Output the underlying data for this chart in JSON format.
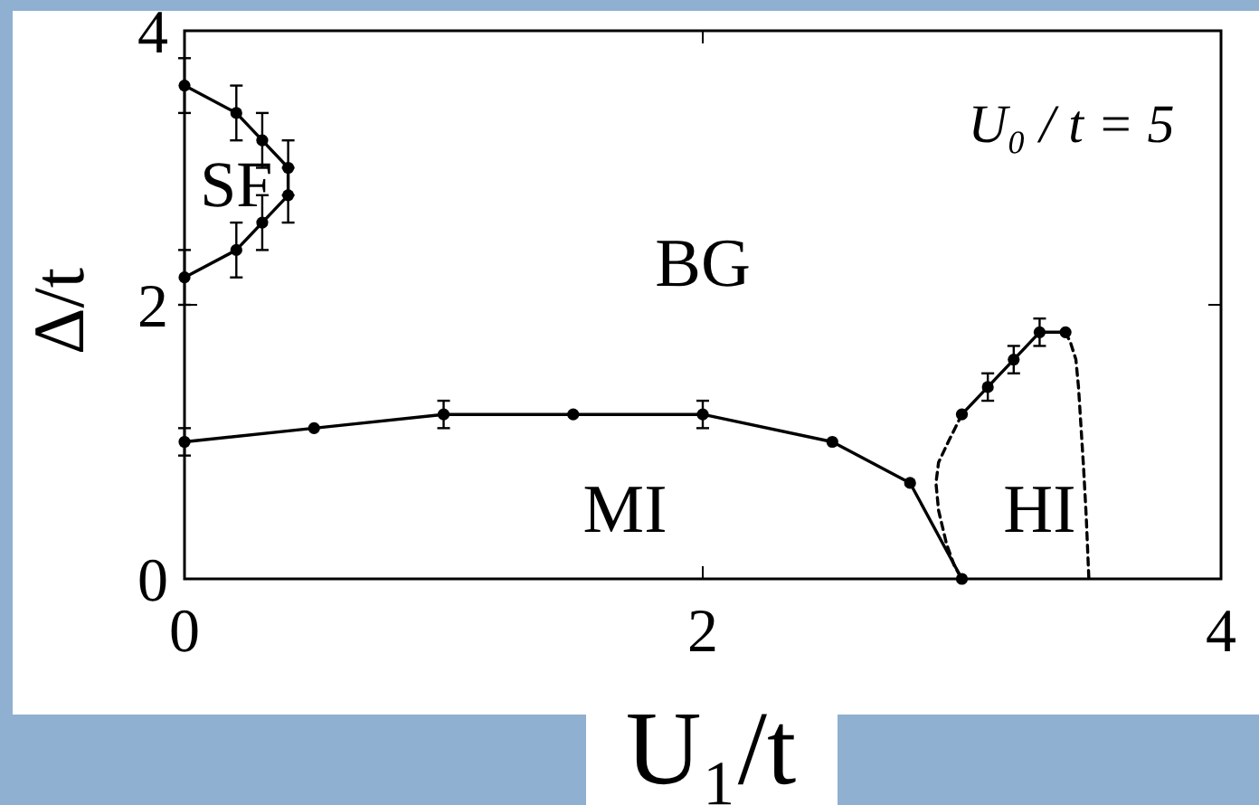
{
  "chart_data": {
    "type": "line",
    "xlabel": "U₁/t",
    "ylabel": "Δ/t",
    "xlim": [
      0,
      4
    ],
    "ylim": [
      0,
      4
    ],
    "xticks": [
      0,
      2,
      4
    ],
    "yticks": [
      0,
      2,
      4
    ],
    "marker": "circle",
    "line_style": "solid",
    "series": [
      {
        "color": "#000000",
        "x": [
          0,
          0.2,
          0.3,
          0.4,
          0.4,
          0.3,
          0.2,
          0
        ],
        "values": [
          3.6,
          3.4,
          3.2,
          3.0,
          2.8,
          2.6,
          2.4,
          2.2
        ],
        "errors": [
          0.2,
          0.2,
          0.2,
          0.2,
          0.2,
          0.2,
          0.2,
          0.2
        ]
      },
      {
        "color": "#000000",
        "x": [
          0,
          0.5,
          1,
          1.5,
          2,
          2.5,
          2.8,
          3.0
        ],
        "values": [
          1.0,
          1.1,
          1.2,
          1.2,
          1.2,
          1.0,
          0.7,
          0
        ],
        "errors": [
          0.1,
          null,
          0.1,
          null,
          0.1,
          null,
          null,
          null
        ]
      },
      {
        "color": "#000000",
        "x": [
          3.0,
          3.1,
          3.2,
          3.3,
          3.4
        ],
        "values": [
          1.2,
          1.4,
          1.6,
          1.8,
          1.8
        ],
        "errors": [
          null,
          0.1,
          0.1,
          0.1,
          null
        ]
      },
      {
        "color": "#000000",
        "marker": "none",
        "line_style": "dashed",
        "x": [
          3.0,
          2.95,
          2.91,
          2.9,
          2.91,
          2.94,
          2.97,
          3.0
        ],
        "values": [
          1.2,
          1.01,
          0.85,
          0.7,
          0.5,
          0.26,
          0.1,
          0
        ]
      },
      {
        "color": "#000000",
        "marker": "none",
        "line_style": "dashed",
        "x": [
          3.4,
          3.42,
          3.44,
          3.45,
          3.46,
          3.47,
          3.48,
          3.49
        ],
        "values": [
          1.8,
          1.72,
          1.6,
          1.4,
          1.1,
          0.8,
          0.45,
          0
        ]
      }
    ],
    "annotations": [
      "U₀ / t = 5",
      "SF",
      "BG",
      "MI",
      "HI"
    ]
  }
}
